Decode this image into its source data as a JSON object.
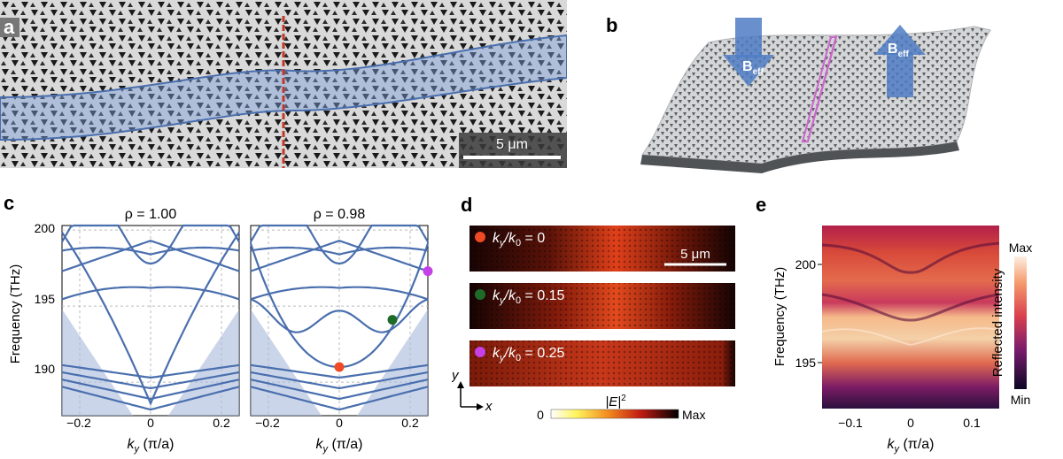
{
  "panels": {
    "a": {
      "label": "a",
      "scale_bar": "5 μm"
    },
    "b": {
      "label": "b",
      "field_left": "B",
      "field_left_sub": "eff",
      "field_right": "B",
      "field_right_sub": "eff"
    },
    "c": {
      "label": "c",
      "left_title": "ρ = 1.00",
      "right_title": "ρ = 0.98",
      "ylabel": "Frequency (THz)",
      "xlabel_k": "k",
      "xlabel_sub": "y",
      "xlabel_rest": " (π/a)",
      "yticks": [
        "200",
        "195",
        "190"
      ],
      "xticks": [
        "−0.2",
        "0",
        "0.2"
      ]
    },
    "d": {
      "label": "d",
      "rows": [
        {
          "marker_color": "#ef4a23",
          "text_k": "k",
          "text_sub1": "y",
          "text_slash": "/k",
          "text_sub2": "0",
          "text_value": " = 0"
        },
        {
          "marker_color": "#1e6b27",
          "text_k": "k",
          "text_sub1": "y",
          "text_slash": "/k",
          "text_sub2": "0",
          "text_value": " = 0.15"
        },
        {
          "marker_color": "#c540e6",
          "text_k": "k",
          "text_sub1": "y",
          "text_slash": "/k",
          "text_sub2": "0",
          "text_value": " = 0.25"
        }
      ],
      "scale_bar": "5 μm",
      "axis_y": "y",
      "axis_x": "x",
      "colorbar_label": "|E|",
      "colorbar_sup": "2",
      "colorbar_min": "0",
      "colorbar_max": "Max"
    },
    "e": {
      "label": "e",
      "ylabel": "Frequency (THz)",
      "yticks": [
        "200",
        "195"
      ],
      "xticks": [
        "−0.1",
        "0",
        "0.1"
      ],
      "xlabel_k": "k",
      "xlabel_sub": "y",
      "xlabel_rest": " (π/a)",
      "colorbar_label": "Reflected intensity",
      "colorbar_max": "Max",
      "colorbar_min": "Min"
    }
  },
  "colors": {
    "band": "#4a6fae",
    "band_fill": "#a9b9dc",
    "red_line": "#c0392b"
  },
  "chart_data": {
    "type": "line",
    "title": "",
    "xlabel": "k_y (π/a)",
    "ylabel": "Frequency (THz)",
    "xlim": [
      -0.25,
      0.25
    ],
    "ylim": [
      187.8,
      200.3
    ],
    "marked_points": [
      {
        "x": 0,
        "y": 191.0,
        "color": "#ef4a23"
      },
      {
        "x": 0.15,
        "y": 194.1,
        "color": "#1e6b27"
      },
      {
        "x": 0.25,
        "y": 197.3,
        "color": "#c540e6"
      }
    ]
  }
}
